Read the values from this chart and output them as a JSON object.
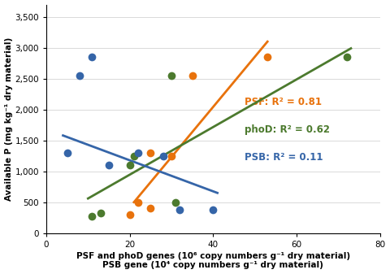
{
  "psf_x": [
    20,
    22,
    25,
    25,
    30,
    35,
    53
  ],
  "psf_y": [
    300,
    500,
    400,
    1300,
    1250,
    2550,
    2850
  ],
  "phod_x": [
    11,
    13,
    20,
    21,
    30,
    31,
    72
  ],
  "phod_y": [
    270,
    320,
    1100,
    1250,
    2550,
    500,
    2850
  ],
  "psb_x": [
    5,
    8,
    11,
    15,
    22,
    28,
    32,
    40
  ],
  "psb_y": [
    1300,
    2550,
    2850,
    1100,
    1300,
    1250,
    380,
    380
  ],
  "psf_line_x": [
    21,
    53
  ],
  "psf_line_y": [
    500,
    3100
  ],
  "phod_line_x": [
    10,
    73
  ],
  "phod_line_y": [
    560,
    2990
  ],
  "psb_line_x": [
    4,
    41
  ],
  "psb_line_y": [
    1580,
    650
  ],
  "psf_color": "#E8720C",
  "phod_color": "#4C7A2E",
  "psb_color": "#3565A8",
  "xlim": [
    0,
    80
  ],
  "ylim": [
    0,
    3700
  ],
  "yticks": [
    0,
    500,
    1000,
    1500,
    2000,
    2500,
    3000,
    3500
  ],
  "xticks": [
    0,
    20,
    40,
    60,
    80
  ],
  "ylabel": "Available P (mg kg⁻¹ dry material)",
  "xlabel_line1": "PSF and phoD genes (10⁶ copy numbers g⁻¹ dry material)",
  "xlabel_line2": "PSB gene (10⁴ copy numbers g⁻¹ dry material)",
  "legend_psf": "PSF: R² = 0.81",
  "legend_phod": "phoD: R² = 0.62",
  "legend_psb": "PSB: R² = 0.11",
  "marker_size": 7,
  "line_width": 2.0
}
